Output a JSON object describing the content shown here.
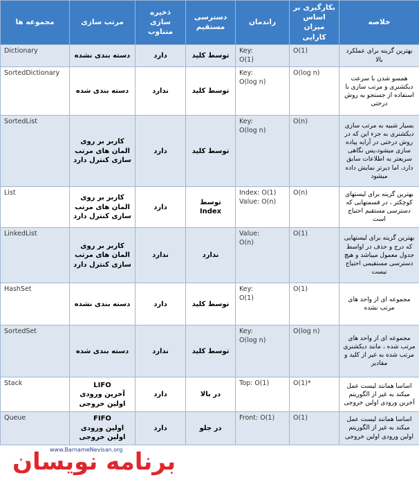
{
  "table": {
    "header": [
      "مجموعه ها",
      "مرتب سازی",
      "ذخیره سازی متناوب",
      "دسترسی مستقیم",
      "راندمان",
      "بکارگیری بر اساس میزان کارایی",
      "خلاصه"
    ],
    "rows": [
      [
        "Dictionary",
        "دسته بندی نشده",
        "دارد",
        "توسط کلید",
        "Key:\nO(1)",
        "O(1)",
        "بهترین گزینه برای عملکرد بالا"
      ],
      [
        "SortedDictionary",
        "دسته بندی شده",
        "ندارد",
        "توسط کلید",
        "Key:\nO(log n)",
        "O(log n)",
        "همسو شدن با سرعت دیکشنری و مرتب سازی با استفاده از جستجو به روش درختی"
      ],
      [
        "SortedList",
        "کاربر بر روی المان های مرتب سازی کنترل دارد",
        "دارد",
        "توسط کلید",
        "Key:\nO(log n)",
        "O(n)",
        "بسیار شبیه به مرتب سازی دیکشنری به جزء این که در روش درختی در آرایه پیاده سازی میشود،پس نگاهی سریعتر به اطلاعات سابق دارد، اما دیرتر نمایش داده میشود"
      ],
      [
        "List",
        "کاربر بر روی المان های مرتب سازی کنترل دارد",
        "دارد",
        "توسط Index",
        "Index: O(1)\nValue: O(n)",
        "O(n)",
        "بهترین گزینه برای لیستهای کوچکتر ، در قسمتهایی که دسترسی مستقیم احتیاج است"
      ],
      [
        "LinkedList",
        "کاربر بر روی المان های مرتب سازی کنترل دارد",
        "ندارد",
        "ندارد",
        "Value:\nO(n)",
        "O(1)",
        "بهترین گزینه برای لیستهایی که درج و حذف در اواسط جدول معمول میباشد و هیچ دسترسی مستقیمی احتیاج نیست"
      ],
      [
        "HashSet",
        "دسته بندی نشده",
        "دارد",
        "توسط کلید",
        "Key:\nO(1)",
        "O(1)",
        "مجموعه ای از واحد های مرتب نشده"
      ],
      [
        "SortedSet",
        "دسته بندی شده",
        "ندارد",
        "توسط کلید",
        "Key:\nO(log n)",
        "O(log n)",
        "مجموعه ای از واحد های مرتب شده ، مانند دیکشنری مرتب شده به غیر از کلید و مقادیر"
      ],
      [
        "Stack",
        "LIFO\nآخرین ورودی\nاولین خروجی",
        "دارد",
        "در بالا",
        "Top: O(1)",
        "O(1)*",
        "اساسا همانند لیست عمل میکند به غیر از الگوریتم آخرین ورودی اولین خروجی"
      ],
      [
        "Queue",
        "FIFO\nاولین ورودی\nاولین خروجی",
        "دارد",
        "در جلو",
        "Front: O(1)",
        "O(1)",
        "اساسا همانند لیست عمل میکند به غیر از الگوریتم اولین ورودی اولین خروجی"
      ]
    ]
  },
  "logo": {
    "name": "برنامه نویسان",
    "url": "www.BarnameNevisan.org"
  }
}
